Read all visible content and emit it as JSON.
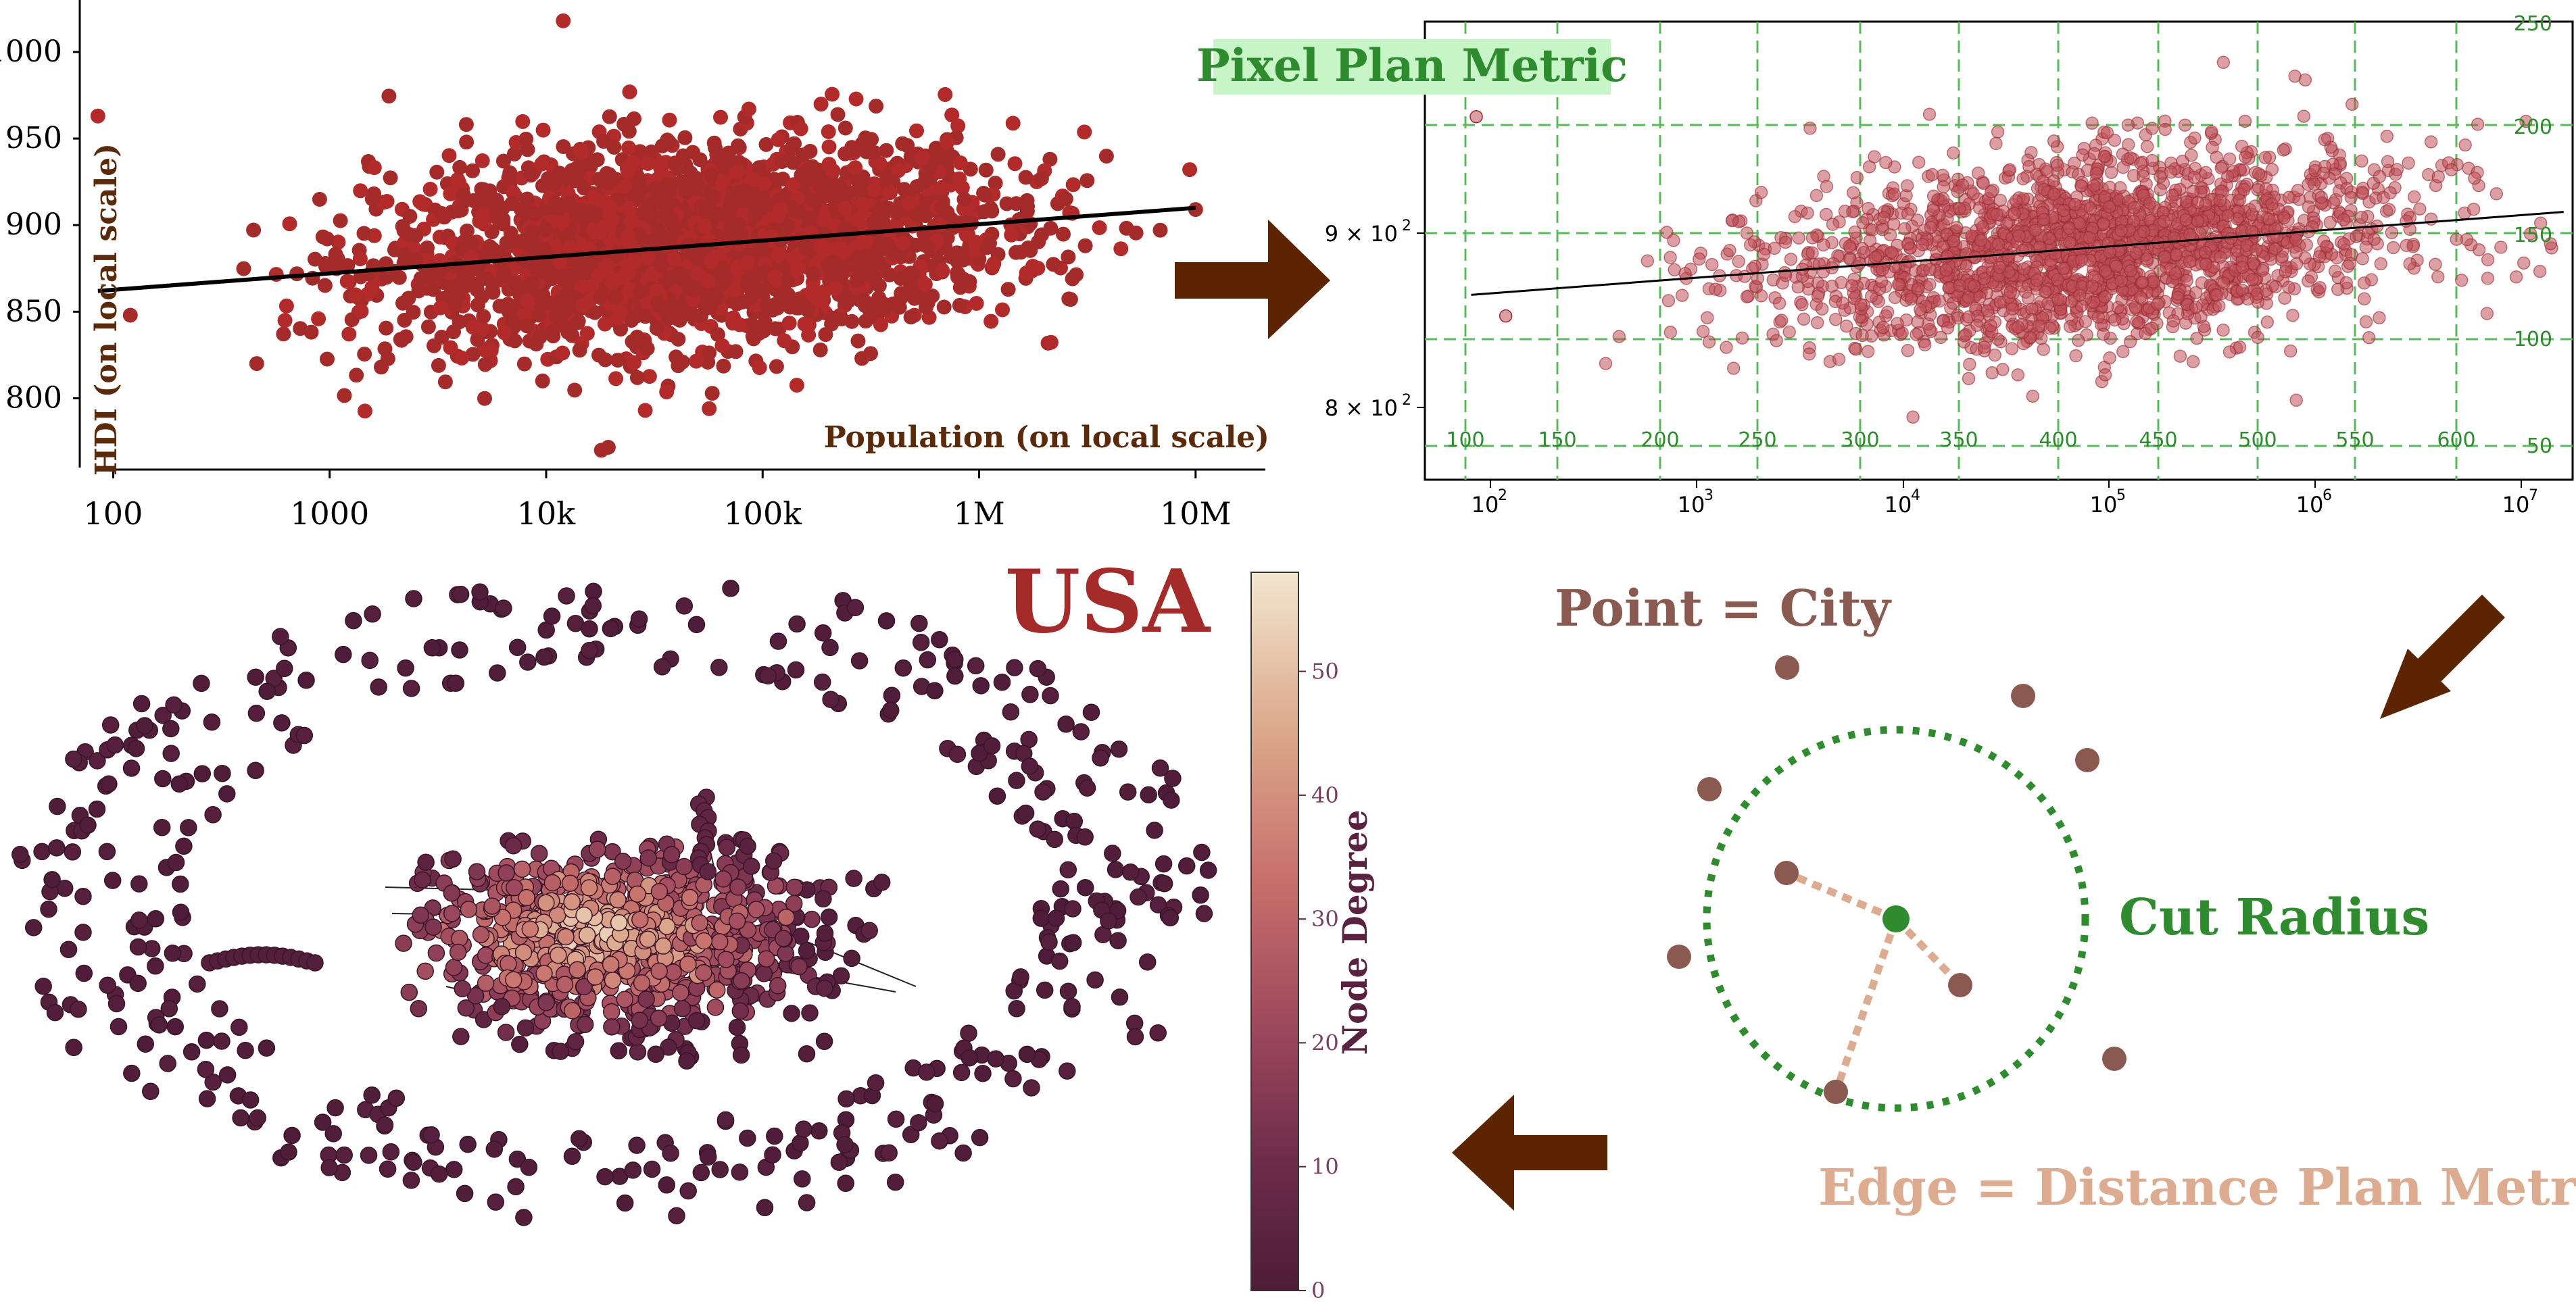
{
  "colors": {
    "dot_red": "#a52a2a",
    "dot_pink": "#c0505a",
    "grid_green": "#5cb85c",
    "axis_text_green": "#2e8b2e",
    "dark_brown": "#5a2a0a",
    "arrow_brown": "#5c2500",
    "point_brown": "#8a5a50",
    "edge_tan": "#dcab90",
    "cut_green": "#2e8b2e",
    "usa_red": "#a52a2a",
    "pixel_label_bg": "#c8f5c8",
    "node_low": "#5a2140",
    "node_high": "#efdfc4"
  },
  "panel1": {
    "xlabel": "Population (on local scale)",
    "ylabel": "HDI (on local scale)",
    "x_ticks": [
      "100",
      "1000",
      "10k",
      "100k",
      "1M",
      "10M"
    ],
    "y_ticks": [
      "800",
      "850",
      "900",
      "950",
      "1000"
    ],
    "xlim_log10": [
      1.6,
      7.33
    ],
    "ylim": [
      760,
      1030
    ]
  },
  "panel2": {
    "title": "Pixel Plan Metric",
    "x_ticks": [
      "10",
      "10",
      "10",
      "10",
      "10",
      "10"
    ],
    "x_tick_exps": [
      "2",
      "3",
      "4",
      "5",
      "6",
      "7"
    ],
    "y_ticks": [
      "9 × 10",
      "8 × 10"
    ],
    "y_tick_exp": "2",
    "pixel_x_labels": [
      "100",
      "150",
      "200",
      "250",
      "300",
      "350",
      "400",
      "450",
      "500",
      "550",
      "600"
    ],
    "pixel_y_labels": [
      "250",
      "200",
      "150",
      "100",
      "50"
    ]
  },
  "panel3": {
    "title": "USA",
    "colorbar_label": "Node Degree",
    "colorbar_ticks": [
      "0",
      "10",
      "20",
      "30",
      "40",
      "50"
    ],
    "colorbar_range": [
      0,
      58
    ]
  },
  "panel4": {
    "point_label": "Point = City",
    "cut_label": "Cut Radius",
    "edge_label": "Edge = Distance  Plan Metric"
  },
  "chart_data": [
    {
      "type": "scatter",
      "xlabel": "Population (on local scale)",
      "ylabel": "HDI (on local scale)",
      "x_scale": "log",
      "x_tick_labels": [
        "100",
        "1000",
        "10k",
        "100k",
        "1M",
        "10M"
      ],
      "y_tick_labels": [
        "800",
        "850",
        "900",
        "950",
        "1000"
      ],
      "xlim": [
        40,
        21000000
      ],
      "ylim": [
        760,
        1030
      ],
      "trend_line": {
        "x": [
          85,
          10000000
        ],
        "y": [
          862,
          910
        ]
      },
      "grid": false
    },
    {
      "type": "scatter",
      "title": "Pixel Plan Metric",
      "x_scale": "log",
      "y_scale": "log",
      "xlim": [
        55,
        11000000
      ],
      "trend_line": {
        "x": [
          90,
          10000000
        ],
        "y": [
          865,
          912
        ]
      },
      "grid": true
    }
  ]
}
